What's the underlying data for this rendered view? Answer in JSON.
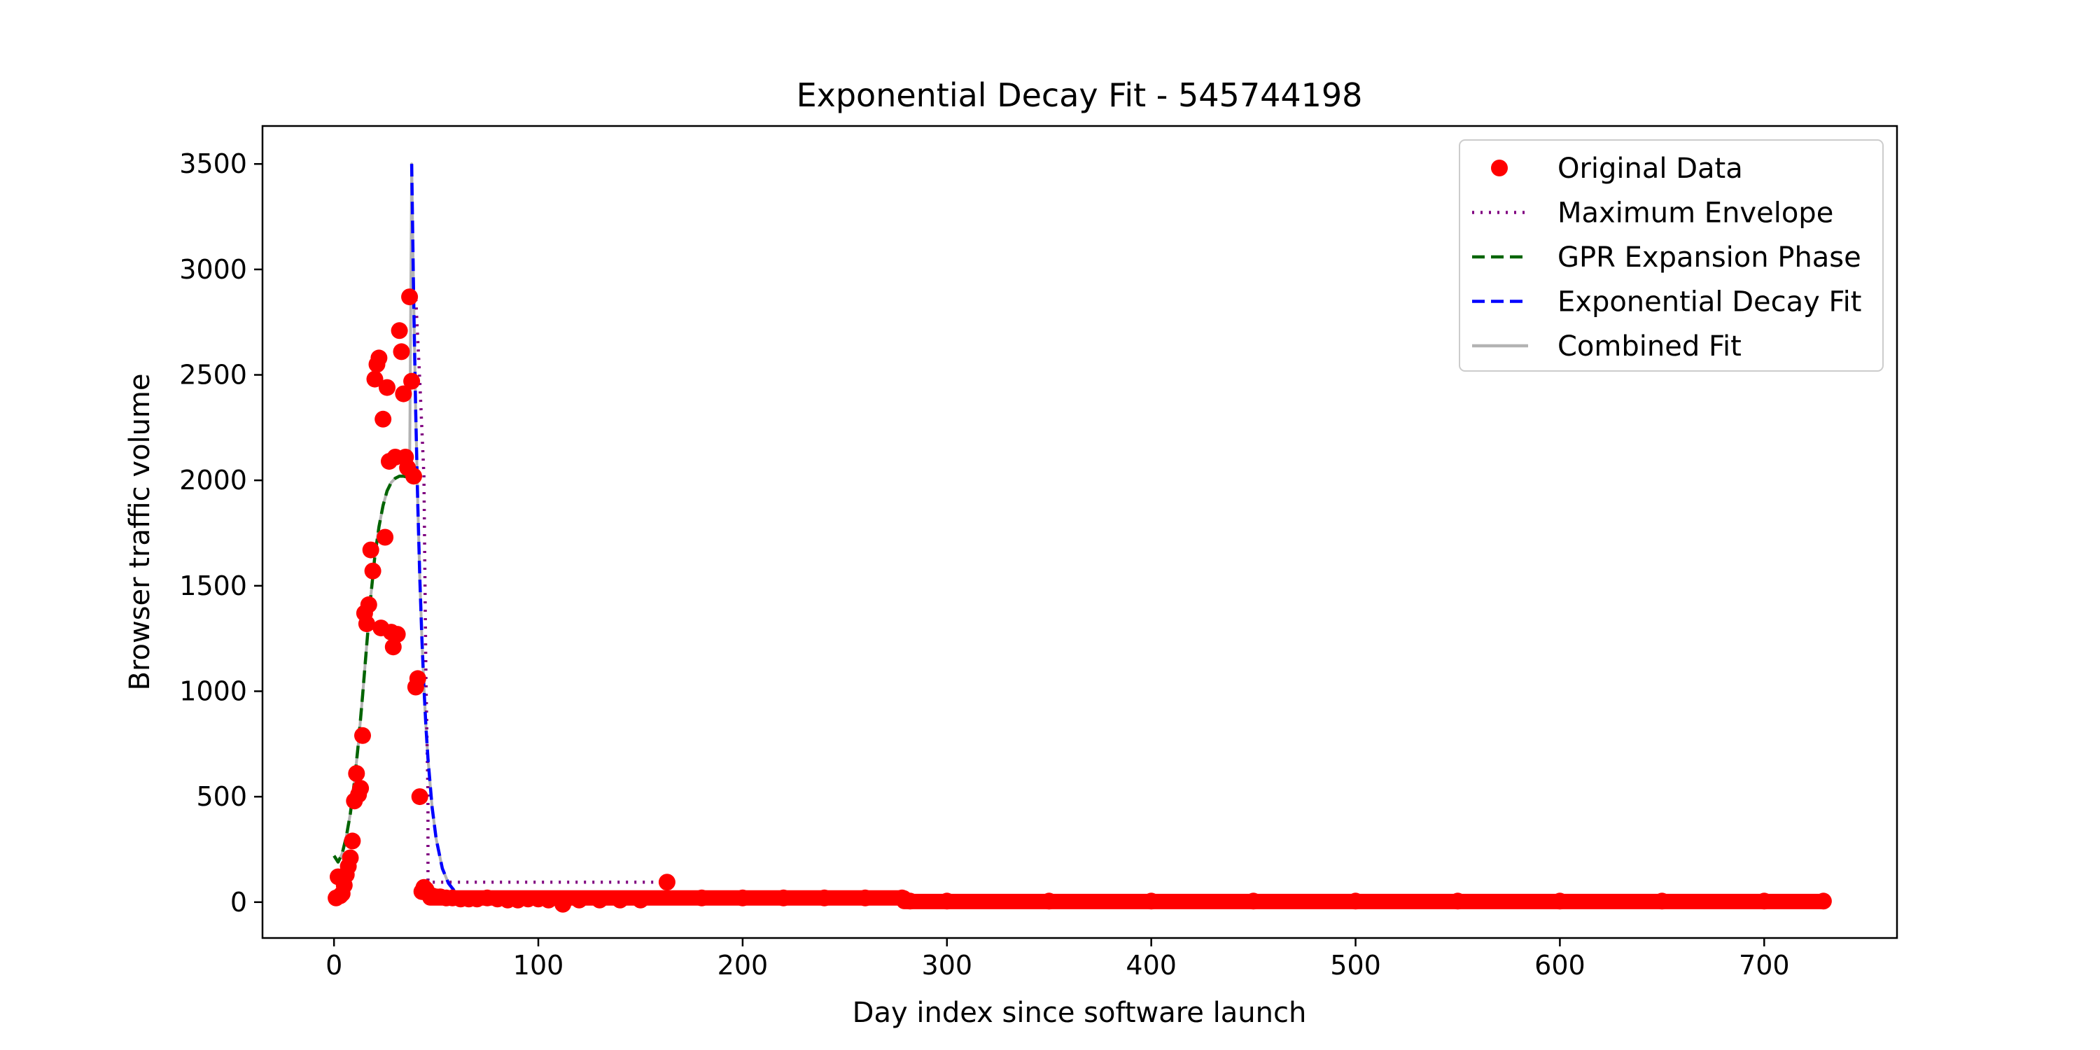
{
  "chart_data": {
    "type": "scatter",
    "title": "Exponential Decay Fit - 545744198",
    "xlabel": "Day index since software launch",
    "ylabel": "Browser traffic volume",
    "xlim": [
      -35,
      765
    ],
    "ylim": [
      -170,
      3680
    ],
    "xticks": [
      0,
      100,
      200,
      300,
      400,
      500,
      600,
      700
    ],
    "yticks": [
      0,
      500,
      1000,
      1500,
      2000,
      2500,
      3000,
      3500
    ],
    "grid": false,
    "legend_position": "top-right",
    "series": [
      {
        "name": "Original Data",
        "kind": "scatter",
        "color": "#ff0000",
        "x": [
          1,
          2,
          3,
          4,
          5,
          6,
          7,
          8,
          9,
          10,
          11,
          12,
          13,
          14,
          15,
          16,
          17,
          18,
          19,
          20,
          21,
          22,
          23,
          24,
          25,
          26,
          27,
          28,
          29,
          30,
          31,
          32,
          33,
          34,
          35,
          36,
          37,
          38,
          39,
          40,
          41,
          42,
          43,
          44,
          45,
          46,
          47,
          48,
          50,
          52,
          55,
          58,
          62,
          66,
          70,
          75,
          80,
          85,
          90,
          95,
          100,
          105,
          112,
          120,
          130,
          140,
          150,
          163,
          180,
          200,
          220,
          240,
          260,
          278,
          282,
          300,
          350,
          400,
          450,
          500,
          550,
          600,
          650,
          700,
          729
        ],
        "values": [
          20,
          120,
          30,
          40,
          80,
          130,
          170,
          210,
          290,
          480,
          610,
          510,
          540,
          790,
          1370,
          1320,
          1410,
          1670,
          1570,
          2480,
          2550,
          2580,
          1300,
          2290,
          1730,
          2440,
          2090,
          1280,
          1210,
          2110,
          1270,
          2710,
          2610,
          2410,
          2110,
          2060,
          2870,
          2470,
          2020,
          1020,
          1060,
          500,
          50,
          70,
          60,
          40,
          30,
          30,
          25,
          25,
          20,
          20,
          15,
          15,
          15,
          20,
          15,
          10,
          10,
          15,
          15,
          10,
          -10,
          10,
          10,
          10,
          10,
          95,
          20,
          20,
          20,
          20,
          20,
          20,
          5,
          5,
          5,
          5,
          5,
          5,
          5,
          5,
          5,
          5,
          5
        ]
      },
      {
        "name": "Maximum Envelope",
        "kind": "line",
        "style": "dotted",
        "color": "#800080",
        "x": [
          37,
          40,
          42,
          44,
          45,
          46,
          46,
          163
        ],
        "values": [
          2870,
          2870,
          2470,
          2020,
          1060,
          500,
          95,
          95
        ]
      },
      {
        "name": "GPR Expansion Phase",
        "kind": "line",
        "style": "dashed",
        "color": "#006400",
        "x": [
          0,
          2,
          4,
          6,
          8,
          10,
          12,
          14,
          16,
          18,
          20,
          22,
          24,
          26,
          28,
          30,
          32,
          34,
          36,
          38
        ],
        "values": [
          220,
          190,
          230,
          310,
          420,
          570,
          760,
          980,
          1220,
          1450,
          1640,
          1780,
          1880,
          1950,
          1990,
          2010,
          2020,
          2020,
          2015,
          2010
        ]
      },
      {
        "name": "Exponential Decay Fit",
        "kind": "line",
        "style": "dashed",
        "color": "#0000ff",
        "x": [
          38,
          39,
          40,
          41,
          42,
          43,
          44,
          45,
          46,
          48,
          50,
          53,
          56,
          60,
          65,
          70,
          80,
          100,
          150,
          200,
          300,
          400,
          500,
          600,
          729
        ],
        "values": [
          3500,
          2850,
          2320,
          1890,
          1540,
          1250,
          1020,
          830,
          680,
          450,
          300,
          160,
          90,
          40,
          15,
          8,
          5,
          5,
          5,
          5,
          5,
          5,
          5,
          5,
          5
        ]
      },
      {
        "name": "Combined Fit",
        "kind": "line",
        "style": "solid",
        "color": "#b3b3b3",
        "x": [
          0,
          2,
          4,
          6,
          8,
          10,
          12,
          14,
          16,
          18,
          20,
          22,
          24,
          26,
          28,
          30,
          32,
          34,
          36,
          37,
          38,
          39,
          40,
          41,
          42,
          43,
          44,
          45,
          46,
          48,
          50,
          53,
          56,
          60,
          65,
          70,
          80,
          100,
          150,
          200,
          300,
          400,
          500,
          600,
          729
        ],
        "values": [
          220,
          190,
          230,
          310,
          420,
          570,
          760,
          980,
          1220,
          1450,
          1640,
          1780,
          1880,
          1950,
          1990,
          2010,
          2020,
          2020,
          2015,
          2010,
          3500,
          2850,
          2320,
          1890,
          1540,
          1250,
          1020,
          830,
          680,
          450,
          300,
          160,
          90,
          40,
          15,
          8,
          5,
          5,
          5,
          5,
          5,
          5,
          5,
          5,
          5
        ]
      }
    ]
  }
}
